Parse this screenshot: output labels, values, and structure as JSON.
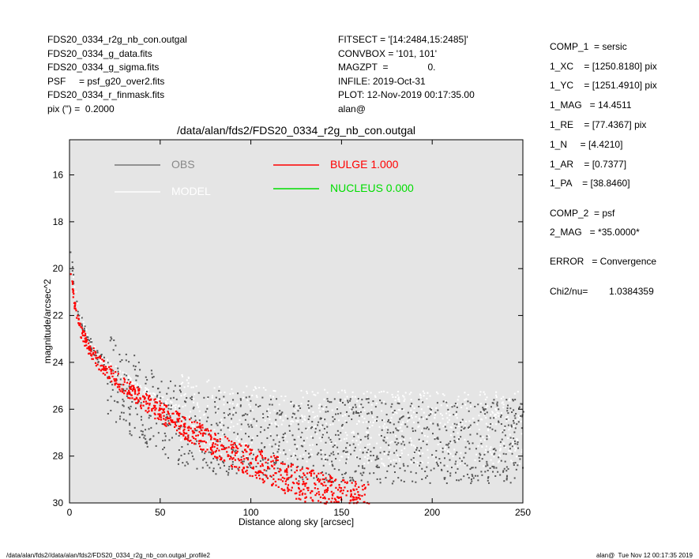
{
  "header_left": [
    "FDS20_0334_r2g_nb_con.outgal",
    "FDS20_0334_g_data.fits",
    "FDS20_0334_g_sigma.fits",
    "PSF     = psf_g20_over2.fits",
    "FDS20_0334_r_finmask.fits",
    "pix (\") =  0.2000"
  ],
  "header_mid": [
    "FITSECT = '[14:2484,15:2485]'",
    "CONVBOX = '101, 101'",
    "MAGZPT  =               0.",
    "INFILE: 2019-Oct-31",
    "PLOT: 12-Nov-2019 00:17:35.00",
    "alan@"
  ],
  "params": [
    "COMP_1  = sersic",
    "1_XC    = [1250.8180] pix",
    "1_YC    = [1251.4910] pix",
    "1_MAG   = 14.4511",
    "1_RE    = [77.4367] pix",
    "1_N     = [4.4210]",
    "1_AR    = [0.7377]",
    "1_PA    = [38.8460]",
    "COMP_2  = psf",
    "2_MAG   = *35.0000*",
    "ERROR   = Convergence",
    "Chi2/nu=        1.0384359"
  ],
  "footer": {
    "left": "/data/alan/fds2//data/alan/fds2/FDS20_0334_r2g_nb_con.outgal_profile2",
    "right": "alan@  Tue Nov 12 00:17:35 2019"
  },
  "chart_data": {
    "type": "scatter",
    "title": "/data/alan/fds2/FDS20_0334_r2g_nb_con.outgal",
    "xlabel": "Distance along sky [arcsec]",
    "ylabel": "magnitude/arcsec^2",
    "xlim": [
      0,
      250
    ],
    "ylim": [
      30,
      14.5
    ],
    "y_inverted": true,
    "xticks": [
      0,
      50,
      100,
      150,
      200,
      250
    ],
    "yticks": [
      16,
      18,
      20,
      22,
      24,
      26,
      28,
      30
    ],
    "background": "#e5e5e5",
    "legend": [
      {
        "name": "OBS",
        "color": "#777777"
      },
      {
        "name": "MODEL",
        "color": "#ffffff"
      },
      {
        "name": "BULGE  1.000",
        "color": "#ff0000"
      },
      {
        "name": "NUCLEUS  0.000",
        "color": "#00dd00"
      }
    ],
    "series": [
      {
        "name": "OBS",
        "color": "#555555",
        "x": [
          0.5,
          2,
          5,
          10,
          15,
          20,
          25,
          30,
          35,
          40,
          45,
          50,
          55,
          60,
          65,
          70,
          75,
          80,
          90,
          100,
          125,
          150,
          175,
          200,
          225,
          250
        ],
        "y": [
          19.2,
          20.6,
          21.9,
          23.0,
          23.6,
          24.0,
          24.3,
          24.6,
          24.9,
          25.2,
          25.4,
          25.6,
          25.8,
          26.0,
          26.1,
          26.2,
          26.3,
          26.4,
          26.5,
          26.6,
          26.7,
          26.75,
          26.8,
          26.8,
          26.8,
          26.8
        ]
      },
      {
        "name": "BULGE  1.000",
        "color": "#ff0000",
        "x": [
          0.5,
          2,
          5,
          10,
          15,
          20,
          30,
          40,
          50,
          60,
          80,
          100,
          120,
          140,
          160
        ],
        "y": [
          20.2,
          21.3,
          22.5,
          23.3,
          23.9,
          24.3,
          25.0,
          25.6,
          26.1,
          26.6,
          27.5,
          28.2,
          28.9,
          29.5,
          30.0
        ]
      }
    ]
  }
}
